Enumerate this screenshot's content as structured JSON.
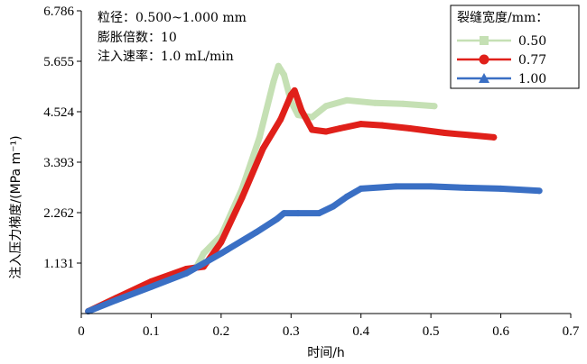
{
  "chart_data": {
    "type": "line",
    "title": "",
    "xlabel": "时间/h",
    "ylabel": "注入压力梯度/(MPa m⁻¹)",
    "xlim": [
      0,
      0.7
    ],
    "ylim": [
      0,
      6.786
    ],
    "xticks": [
      0,
      0.1,
      0.2,
      0.3,
      0.4,
      0.5,
      0.6,
      0.7
    ],
    "xtick_labels": [
      "0",
      "0.1",
      "0.2",
      "0.3",
      "0.4",
      "0.5",
      "0.6",
      "0.7"
    ],
    "yticks": [
      1.131,
      2.262,
      3.393,
      4.524,
      5.655,
      6.786
    ],
    "ytick_labels": [
      "1.131",
      "2.262",
      "3.393",
      "4.524",
      "5.655",
      "6.786"
    ],
    "annotations": [
      "粒径：0.500~1.000 mm",
      "膨胀倍数：10",
      "注入速率：1.0 mL/min"
    ],
    "legend_title": "裂缝宽度/mm：",
    "legend_position": "top-right",
    "series": [
      {
        "name": "0.50",
        "color": "#c5e0b4",
        "marker": "square",
        "x": [
          0.01,
          0.05,
          0.1,
          0.14,
          0.165,
          0.175,
          0.2,
          0.23,
          0.255,
          0.275,
          0.282,
          0.29,
          0.3,
          0.31,
          0.33,
          0.35,
          0.38,
          0.42,
          0.46,
          0.505
        ],
        "y": [
          0.05,
          0.35,
          0.6,
          0.9,
          1.05,
          1.35,
          1.75,
          2.8,
          3.95,
          5.2,
          5.55,
          5.35,
          4.75,
          4.45,
          4.4,
          4.65,
          4.78,
          4.72,
          4.7,
          4.65
        ]
      },
      {
        "name": "0.77",
        "color": "#e0201a",
        "marker": "circle",
        "x": [
          0.01,
          0.05,
          0.1,
          0.15,
          0.175,
          0.2,
          0.23,
          0.26,
          0.285,
          0.3,
          0.305,
          0.315,
          0.33,
          0.35,
          0.37,
          0.4,
          0.43,
          0.47,
          0.52,
          0.555,
          0.59
        ],
        "y": [
          0.05,
          0.35,
          0.72,
          1.0,
          1.05,
          1.6,
          2.6,
          3.7,
          4.35,
          4.9,
          5.0,
          4.55,
          4.12,
          4.08,
          4.15,
          4.25,
          4.22,
          4.15,
          4.05,
          4.0,
          3.95
        ]
      },
      {
        "name": "1.00",
        "color": "#3a6fc4",
        "marker": "triangle",
        "x": [
          0.01,
          0.05,
          0.1,
          0.15,
          0.2,
          0.25,
          0.28,
          0.29,
          0.31,
          0.34,
          0.36,
          0.38,
          0.4,
          0.45,
          0.5,
          0.55,
          0.6,
          0.655
        ],
        "y": [
          0.05,
          0.3,
          0.6,
          0.9,
          1.35,
          1.82,
          2.12,
          2.25,
          2.25,
          2.25,
          2.4,
          2.62,
          2.8,
          2.85,
          2.85,
          2.82,
          2.8,
          2.75
        ]
      }
    ]
  }
}
